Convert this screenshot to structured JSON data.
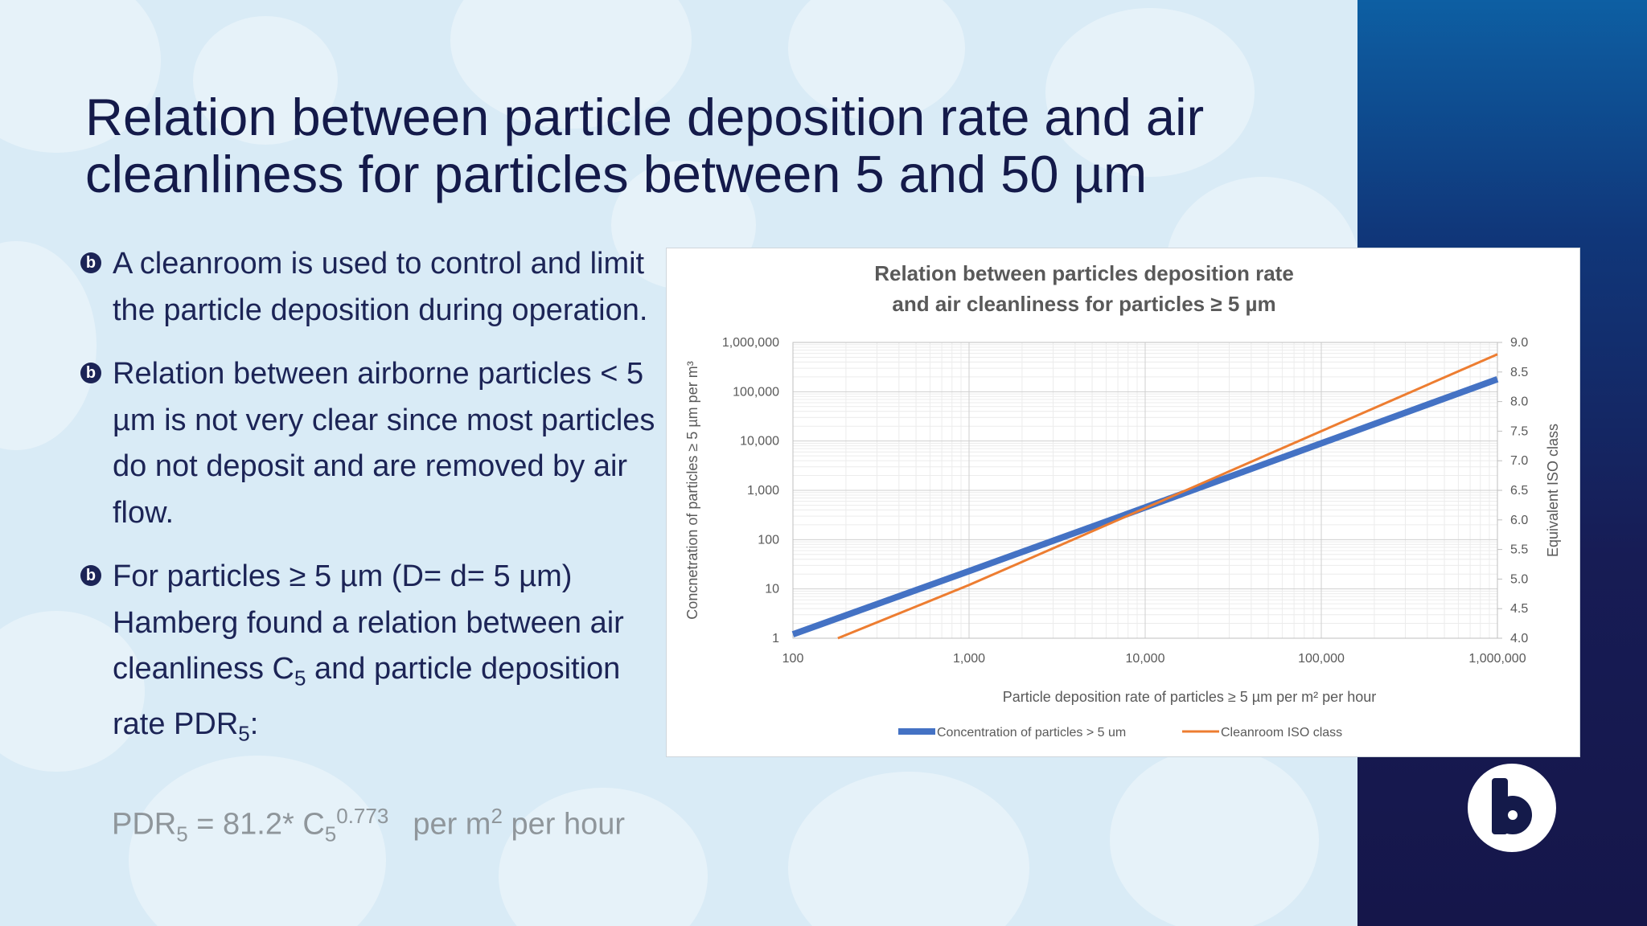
{
  "slide": {
    "title": "Relation between particle deposition rate and air cleanliness for particles between 5 and 50 µm",
    "bullets": [
      {
        "text": "A cleanroom is used to control and limit the particle deposition during operation."
      },
      {
        "text": "Relation between airborne particles < 5 µm is not very clear since most particles do not deposit and are removed by air flow."
      },
      {
        "pre": "For particles ≥ 5 µm (D= d= 5 µm) Hamberg found a relation between air cleanliness C",
        "sub1": "5",
        "mid": " and particle deposition rate PDR",
        "sub2": "5",
        "post": ":"
      }
    ],
    "formula": {
      "lhs": "PDR",
      "lhs_sub": "5",
      "eq": " = 81.2* C",
      "c_sub": "5",
      "exp": "0.773",
      "unit_pre": "per m",
      "unit_sup": "2",
      "unit_post": " per hour"
    }
  },
  "colors": {
    "navy": "#141a4a",
    "blue_series": "#4472c4",
    "orange_series": "#ed7d31"
  },
  "icons": {
    "bullet": "b-logo-bullet-icon",
    "logo": "b-logo-icon"
  },
  "chart_data": {
    "type": "line",
    "title": "Relation between particles deposition rate and air cleanliness for particles ≥ 5 µm",
    "title_lines": [
      "Relation between particles deposition rate",
      "and air cleanliness for particles ≥ 5 µm"
    ],
    "xlabel": "Particle deposition rate of particles ≥ 5 µm per m² per hour",
    "ylabel": "Concnetration of particles ≥ 5 µm per m³",
    "y2label": "Equivalent ISO class",
    "x_scale": "log",
    "y_scale": "log",
    "xlim": [
      100,
      1000000
    ],
    "ylim": [
      1,
      1000000
    ],
    "y2lim": [
      4.0,
      9.0
    ],
    "x_ticks": [
      "100",
      "1,000",
      "10,000",
      "100,000",
      "1,000,000"
    ],
    "y_ticks": [
      "1",
      "10",
      "100",
      "1,000",
      "10,000",
      "100,000",
      "1,000,000"
    ],
    "y2_ticks": [
      "4.0",
      "4.5",
      "5.0",
      "5.5",
      "6.0",
      "6.5",
      "7.0",
      "7.5",
      "8.0",
      "8.5",
      "9.0"
    ],
    "grid": true,
    "legend_position": "bottom",
    "series": [
      {
        "name": "Concentration of particles > 5 um",
        "axis": "left",
        "color": "#4472c4",
        "x": [
          100,
          1000,
          10000,
          100000,
          1000000
        ],
        "y": [
          1.2,
          23,
          450,
          9000,
          180000
        ]
      },
      {
        "name": "Cleanroom ISO class",
        "axis": "right",
        "color": "#ed7d31",
        "x": [
          180,
          1000,
          10000,
          100000,
          1000000
        ],
        "y": [
          4.0,
          4.9,
          6.2,
          7.5,
          8.8
        ]
      }
    ]
  }
}
